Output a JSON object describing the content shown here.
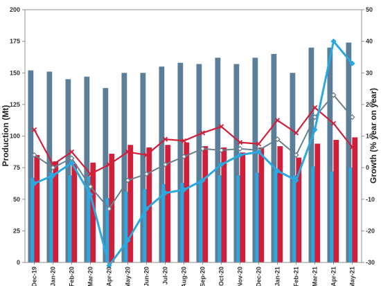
{
  "chart_data": {
    "type": "bar",
    "title": "",
    "ylabel": "Production (Mt)",
    "y2label": "Growth (% year on year)",
    "categories": [
      "Dec-19",
      "Jan-20",
      "Feb-20",
      "Mar-20",
      "Apr-20",
      "May-20",
      "Jun-20",
      "Jul-20",
      "Aug-20",
      "Sep-20",
      "Oct-20",
      "Nov-20",
      "Dec-20",
      "Jan-21",
      "Feb-21",
      "Mar-21",
      "Apr-21",
      "May-21"
    ],
    "ylim": [
      0,
      200
    ],
    "y2lim": [
      -30,
      50
    ],
    "y_ticks": [
      "0",
      "25",
      "50",
      "75",
      "100",
      "125",
      "150",
      "175",
      "200"
    ],
    "y2_ticks": [
      "-30",
      "-20",
      "-10",
      "0",
      "10",
      "20",
      "30",
      "40",
      "50"
    ],
    "grid": false,
    "legend": "none",
    "bar_series": [
      {
        "color": "#5b7f99",
        "values": [
          152,
          151,
          145,
          147,
          138,
          150,
          150,
          155,
          158,
          157,
          162,
          157,
          162,
          165,
          150,
          170,
          170,
          174
        ]
      },
      {
        "color": "#2aa9e0",
        "values": [
          67,
          71,
          69,
          68,
          51,
          56,
          58,
          62,
          63,
          65,
          69,
          69,
          71,
          73,
          69,
          76,
          72,
          75
        ]
      },
      {
        "color": "#d11f3a",
        "values": [
          85,
          80,
          78,
          79,
          86,
          93,
          91,
          93,
          95,
          92,
          91,
          87,
          91,
          92,
          83,
          94,
          97,
          99
        ]
      }
    ],
    "line_series": [
      {
        "color": "#d11f3a",
        "marker": "x",
        "values": [
          12,
          1,
          5,
          -2,
          1,
          5,
          4,
          9,
          8.5,
          11,
          13,
          8,
          7.5,
          15,
          11,
          19,
          14,
          6.5
        ]
      },
      {
        "color": "#6a7f8c",
        "marker": "diamond",
        "values": [
          4,
          0,
          3,
          -6,
          -13,
          -4,
          -2,
          1,
          3.5,
          6,
          5.5,
          6,
          5.5,
          9,
          4,
          16,
          23,
          16
        ]
      },
      {
        "color": "#2aa9e0",
        "marker": "diamond",
        "values": [
          -5,
          -2.5,
          1.5,
          -8.5,
          -31,
          -23,
          -13,
          -8,
          -7,
          -4,
          1,
          4,
          5,
          -1,
          -4,
          12,
          40,
          33
        ]
      }
    ]
  }
}
